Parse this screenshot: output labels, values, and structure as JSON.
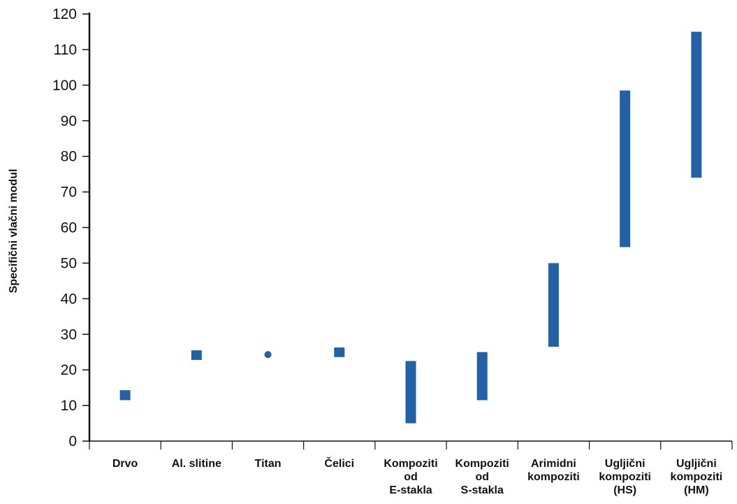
{
  "chart_data": {
    "type": "bar",
    "title": "",
    "xlabel": "",
    "ylabel": "Specifični vlačni modul",
    "ylim": [
      0,
      120
    ],
    "yticks": [
      0,
      10,
      20,
      30,
      40,
      50,
      60,
      70,
      80,
      90,
      100,
      110,
      120
    ],
    "grid": false,
    "bar_color": "#2260a8",
    "categories": [
      [
        "Drvo"
      ],
      [
        "Al. slitine"
      ],
      [
        "Titan"
      ],
      [
        "Čelici"
      ],
      [
        "Kompoziti",
        "od",
        "E-stakla"
      ],
      [
        "Kompoziti",
        "od",
        "S-stakla"
      ],
      [
        "Arimidni",
        "kompoziti"
      ],
      [
        "Ugljični",
        "kompoziti",
        "(HS)"
      ],
      [
        "Ugljični",
        "kompoziti",
        "(HM)"
      ]
    ],
    "ranges": [
      {
        "low": 11.5,
        "high": 14.3,
        "marker": "square"
      },
      {
        "low": 22.8,
        "high": 25.5,
        "marker": "square"
      },
      {
        "low": 24.3,
        "high": 24.3,
        "marker": "dot"
      },
      {
        "low": 23.6,
        "high": 26.3,
        "marker": "square"
      },
      {
        "low": 5,
        "high": 22.5,
        "marker": "bar"
      },
      {
        "low": 11.5,
        "high": 25,
        "marker": "bar"
      },
      {
        "low": 26.5,
        "high": 50,
        "marker": "bar"
      },
      {
        "low": 54.5,
        "high": 98.5,
        "marker": "bar"
      },
      {
        "low": 74,
        "high": 115,
        "marker": "bar"
      }
    ]
  }
}
